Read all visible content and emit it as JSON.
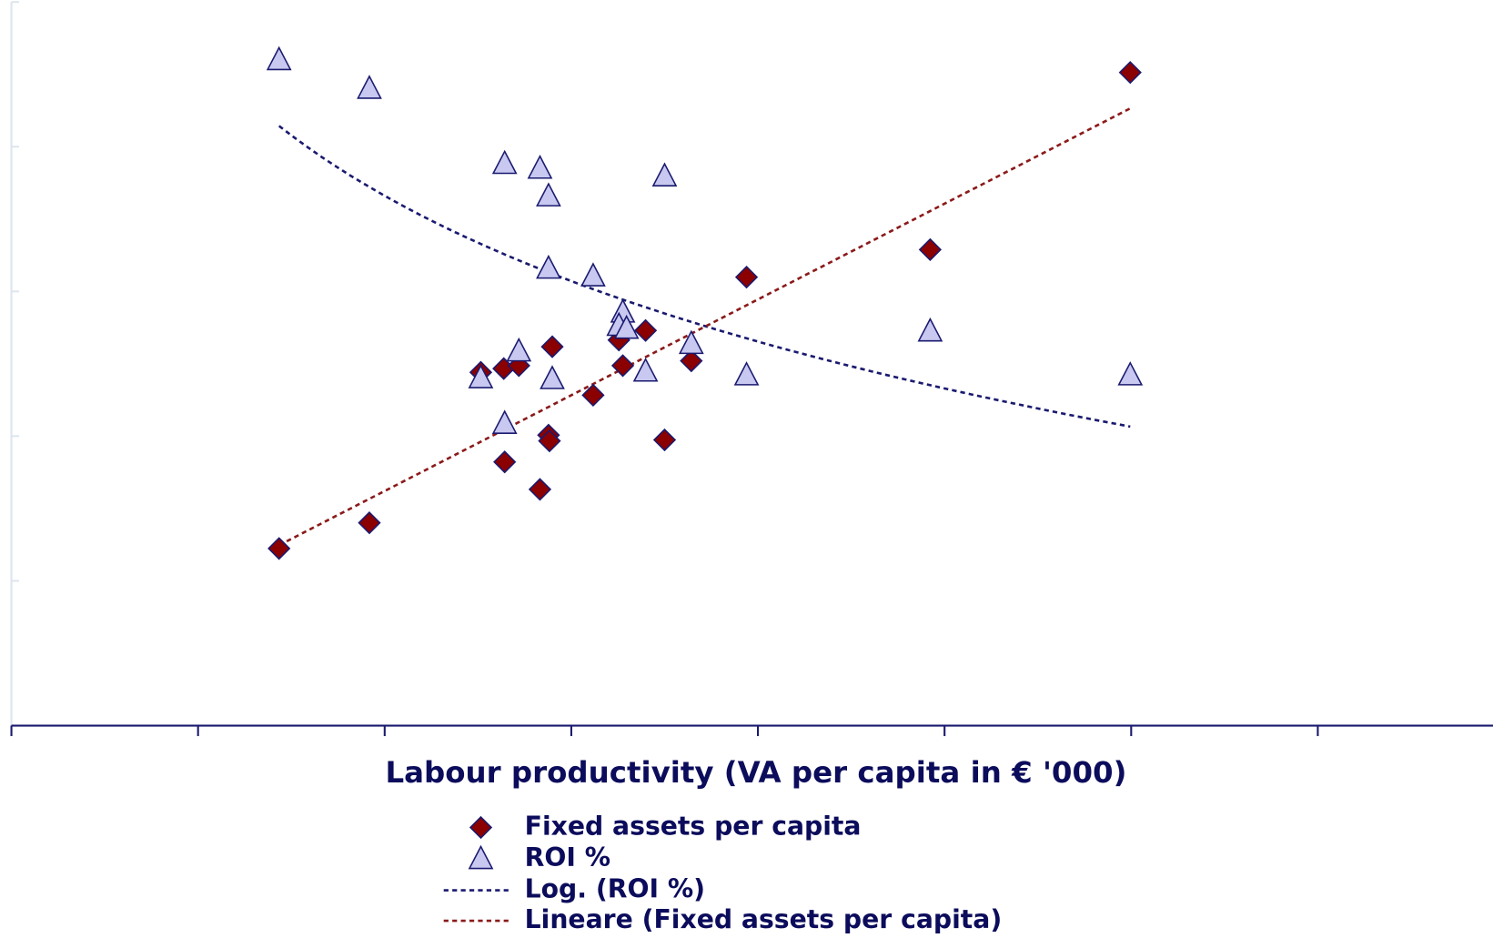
{
  "chart_data": {
    "type": "scatter",
    "x_label": "Labour productivity (VA per capita in € '000)",
    "xlim": [
      0,
      8
    ],
    "xticks": [
      0,
      1,
      2,
      3,
      4,
      5,
      6,
      7,
      8
    ],
    "ylim": [
      0,
      5
    ],
    "yticks": [
      0,
      1,
      2,
      3,
      4,
      5
    ],
    "series": [
      {
        "name": "Fixed assets per capita",
        "marker": "diamond",
        "color": "#8b0000",
        "x": [
          1.434,
          1.918,
          2.515,
          2.638,
          2.719,
          2.898,
          2.878,
          2.883,
          2.643,
          2.832,
          3.117,
          3.255,
          3.276,
          3.398,
          3.643,
          3.5,
          3.939,
          4.923,
          5.995
        ],
        "values": [
          1.224,
          1.401,
          2.441,
          2.467,
          2.487,
          2.618,
          2.007,
          1.967,
          1.822,
          1.632,
          2.283,
          2.664,
          2.487,
          2.73,
          2.52,
          1.974,
          3.099,
          3.289,
          4.513
        ]
      },
      {
        "name": "ROI %",
        "marker": "triangle",
        "color": "#c8c8f0",
        "x": [
          1.434,
          1.918,
          2.643,
          2.832,
          2.878,
          3.5,
          2.878,
          3.117,
          3.276,
          3.255,
          3.296,
          2.719,
          2.515,
          2.898,
          3.398,
          2.643,
          3.643,
          3.939,
          4.923,
          5.995
        ],
        "values": [
          4.599,
          4.401,
          3.882,
          3.849,
          3.658,
          3.796,
          3.158,
          3.105,
          2.855,
          2.763,
          2.743,
          2.586,
          2.401,
          2.395,
          2.447,
          2.086,
          2.638,
          2.421,
          2.724,
          2.421
        ]
      }
    ],
    "trendlines": [
      {
        "name": "Log. (ROI %)",
        "fit": "log",
        "series": 1,
        "color": "#1a1a70"
      },
      {
        "name": "Lineare (Fixed assets per capita)",
        "fit": "linear",
        "series": 0,
        "color": "#8b1a1a"
      }
    ]
  }
}
